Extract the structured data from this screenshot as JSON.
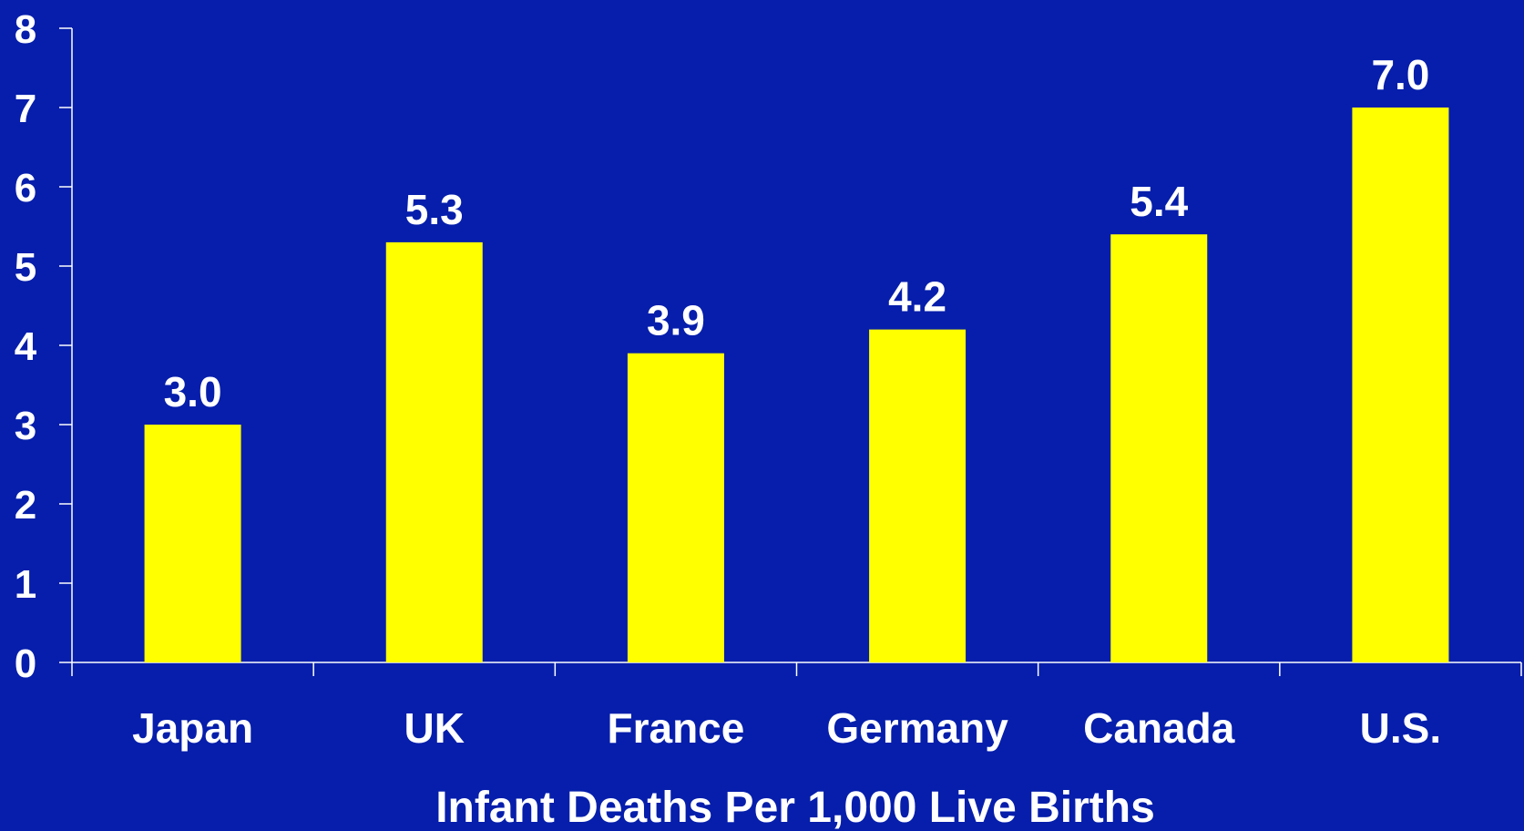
{
  "colors": {
    "background": "#061eab",
    "bar": "#ffff00",
    "axis": "#ffffff",
    "text": "#ffffff"
  },
  "chart_data": {
    "type": "bar",
    "title": "",
    "xlabel": "Infant Deaths Per 1,000 Live Births",
    "ylabel": "",
    "categories": [
      "Japan",
      "UK",
      "France",
      "Germany",
      "Canada",
      "U.S."
    ],
    "values": [
      3.0,
      5.3,
      3.9,
      4.2,
      5.4,
      7.0
    ],
    "value_labels": [
      "3.0",
      "5.3",
      "3.9",
      "4.2",
      "5.4",
      "7.0"
    ],
    "ylim": [
      0,
      8
    ],
    "yticks": [
      0,
      1,
      2,
      3,
      4,
      5,
      6,
      7,
      8
    ],
    "ytick_labels": [
      "0",
      "1",
      "2",
      "3",
      "4",
      "5",
      "6",
      "7",
      "8"
    ],
    "grid": false,
    "legend": "none"
  }
}
